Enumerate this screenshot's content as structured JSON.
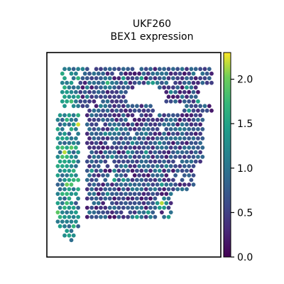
{
  "chart_data": {
    "type": "scatter",
    "title": "UKF260",
    "subtitle": "BEX1 expression",
    "xlabel": "",
    "ylabel": "",
    "grid": false,
    "colorbar": {
      "colormap": "viridis",
      "range": [
        0.0,
        2.3
      ],
      "ticks": [
        0.0,
        0.5,
        1.0,
        1.5,
        2.0
      ],
      "tick_labels": [
        "0.0",
        "0.5",
        "1.0",
        "1.5",
        "2.0"
      ]
    },
    "points": [
      {
        "x": 0.09,
        "y": 0.48,
        "value": 2.2
      },
      {
        "x": 0.11,
        "y": 0.5,
        "value": 2.1
      },
      {
        "x": 0.1,
        "y": 0.44,
        "value": 1.9
      },
      {
        "x": 0.13,
        "y": 0.46,
        "value": 1.6
      },
      {
        "x": 0.12,
        "y": 0.38,
        "value": 1.5
      },
      {
        "x": 0.14,
        "y": 0.3,
        "value": 1.4
      },
      {
        "x": 0.35,
        "y": 0.31,
        "value": 1.3
      },
      {
        "x": 0.4,
        "y": 0.62,
        "value": 1.5
      },
      {
        "x": 0.65,
        "y": 0.55,
        "value": 1.4
      },
      {
        "x": 0.8,
        "y": 0.3,
        "value": 1.6
      },
      {
        "x": 0.66,
        "y": 0.26,
        "value": 2.3
      },
      {
        "x": 0.35,
        "y": 0.85,
        "value": 1.8
      }
    ],
    "colors": {
      "viridis_0": "#440154",
      "viridis_25": "#3b528b",
      "viridis_50": "#21918c",
      "viridis_75": "#5ec962",
      "viridis_100": "#fde725"
    }
  }
}
